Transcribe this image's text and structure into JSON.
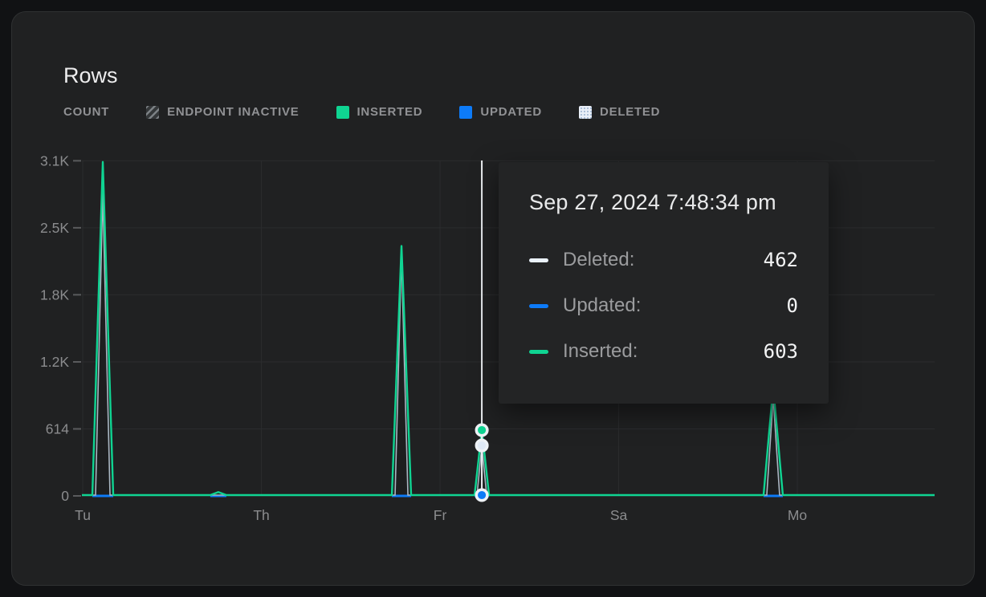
{
  "card": {
    "title": "Rows"
  },
  "legend": {
    "axis_label": "COUNT",
    "items": [
      {
        "label": "ENDPOINT INACTIVE",
        "swatch": "hatched",
        "color": "#7c8185"
      },
      {
        "label": "INSERTED",
        "swatch": "solid",
        "color": "#0fd492"
      },
      {
        "label": "UPDATED",
        "swatch": "solid",
        "color": "#0d7bf8"
      },
      {
        "label": "DELETED",
        "swatch": "dotted",
        "color": "#e9eff8"
      }
    ]
  },
  "tooltip": {
    "title": "Sep 27, 2024 7:48:34 pm",
    "rows": [
      {
        "label": "Deleted:",
        "value": "462",
        "color": "#eaf1fa"
      },
      {
        "label": "Updated:",
        "value": "0",
        "color": "#0d7bf8"
      },
      {
        "label": "Inserted:",
        "value": "603",
        "color": "#0fd492"
      }
    ]
  },
  "chart_data": {
    "type": "line",
    "title": "Rows",
    "ylabel": "COUNT",
    "grid": true,
    "ylim": [
      0,
      3071
    ],
    "y_ticks": [
      {
        "label": "3.1K",
        "value": 3071
      },
      {
        "label": "2.5K",
        "value": 2457
      },
      {
        "label": "1.8K",
        "value": 1843
      },
      {
        "label": "1.2K",
        "value": 1228
      },
      {
        "label": "614",
        "value": 614
      },
      {
        "label": "0",
        "value": 0
      }
    ],
    "x_ticks": [
      {
        "label": "Tu",
        "t": 0.001
      },
      {
        "label": "Th",
        "t": 0.2105
      },
      {
        "label": "Fr",
        "t": 0.42
      },
      {
        "label": "Sa",
        "t": 0.6295
      },
      {
        "label": "Mo",
        "t": 0.839
      }
    ],
    "series": [
      {
        "name": "Inserted",
        "color": "#0fd492",
        "baseline": 0,
        "width": 2.4,
        "spikes": [
          {
            "t": 0.0245,
            "peak": 3060,
            "hw": 13
          },
          {
            "t": 0.16,
            "peak": 35,
            "hw": 10
          },
          {
            "t": 0.3748,
            "peak": 2290,
            "hw": 12
          },
          {
            "t": 0.469,
            "peak": 603,
            "hw": 9
          },
          {
            "t": 0.8107,
            "peak": 1000,
            "hw": 12
          }
        ]
      },
      {
        "name": "Deleted",
        "color": "#a9b7c3",
        "baseline": 0,
        "width": 1.6,
        "spikes": [
          {
            "t": 0.0245,
            "peak": 2780,
            "hw": 9
          },
          {
            "t": 0.3748,
            "peak": 2210,
            "hw": 8
          },
          {
            "t": 0.469,
            "peak": 462,
            "hw": 6
          },
          {
            "t": 0.8107,
            "peak": 900,
            "hw": 8
          }
        ]
      },
      {
        "name": "Updated",
        "color": "#0d7bf8",
        "baseline": 0,
        "width": 3,
        "spikes": []
      }
    ],
    "hover": {
      "t": 0.469,
      "timestamp": "Sep 27, 2024 7:48:34 pm",
      "markers": [
        {
          "series": "Inserted",
          "value": 603,
          "color": "#0fd492"
        },
        {
          "series": "Deleted",
          "value": 462,
          "color": "#dfe9f6"
        },
        {
          "series": "Updated",
          "value": 0,
          "color": "#0d7bf8"
        }
      ]
    }
  }
}
